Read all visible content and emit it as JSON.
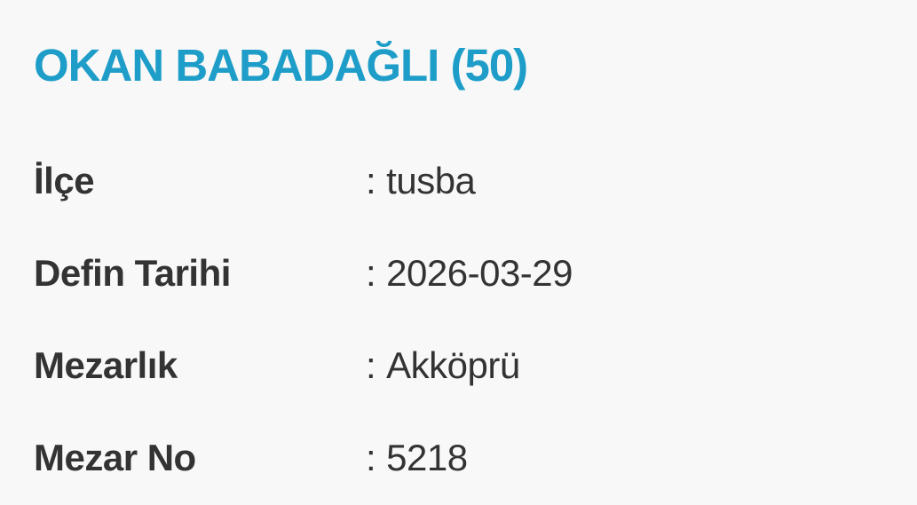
{
  "page": {
    "background_color": "#f8f8f8",
    "accent_color": "#1d9dc8",
    "text_color": "#333333"
  },
  "header": {
    "title": "OKAN BABADAĞLI (50)"
  },
  "record": {
    "separator": ":",
    "rows": [
      {
        "label": "İlçe",
        "value": "tusba"
      },
      {
        "label": "Defin Tarihi",
        "value": "2026-03-29"
      },
      {
        "label": "Mezarlık",
        "value": "Akköprü"
      },
      {
        "label": "Mezar No",
        "value": "5218"
      }
    ]
  }
}
